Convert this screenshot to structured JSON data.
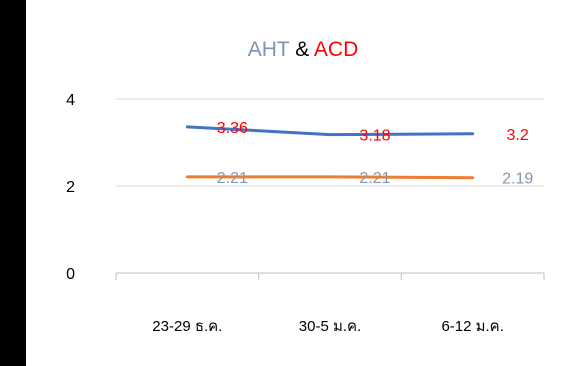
{
  "chart_data": {
    "type": "line",
    "title": {
      "parts": [
        {
          "text": "AHT",
          "color": "#7f93b5"
        },
        {
          "text": " & ",
          "color": "#000000"
        },
        {
          "text": "ACD",
          "color": "#ff0000"
        }
      ]
    },
    "categories": [
      "23-29 ธ.ค.",
      "30-5 ม.ค.",
      "6-12 ม.ค."
    ],
    "series": [
      {
        "values": [
          3.36,
          3.18,
          3.2
        ],
        "color": "#4472c4",
        "label_color": "#ff0000"
      },
      {
        "values": [
          2.21,
          2.21,
          2.19
        ],
        "color": "#ed7d31",
        "label_color": "#8497b0"
      }
    ],
    "ylim": [
      0,
      4
    ],
    "yticks": [
      0,
      2,
      4
    ],
    "grid": true
  }
}
